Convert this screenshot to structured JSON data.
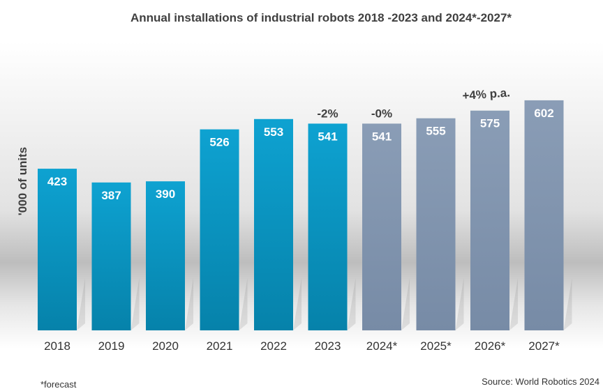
{
  "colors": {
    "actual": "#0a9bc9",
    "actual_dark": "#0680a8",
    "forecast": "#8599b2",
    "forecast_dark": "#7488a3"
  },
  "chart_data": {
    "type": "bar",
    "title": "Annual installations of industrial robots 2018  -2023 and 2024*-2027*",
    "xlabel": "",
    "ylabel": "'000 of units",
    "ylim": [
      0,
      602
    ],
    "categories": [
      "2018",
      "2019",
      "2020",
      "2021",
      "2022",
      "2023",
      "2024*",
      "2025*",
      "2026*",
      "2027*"
    ],
    "values": [
      423,
      387,
      390,
      526,
      553,
      541,
      541,
      555,
      575,
      602
    ],
    "series_type": [
      "actual",
      "actual",
      "actual",
      "actual",
      "actual",
      "actual",
      "forecast",
      "forecast",
      "forecast",
      "forecast"
    ],
    "annotations": [
      {
        "text": "-2%",
        "category": "2023"
      },
      {
        "text": "-0%",
        "category": "2024*"
      },
      {
        "text": "+4% p.a.",
        "category": "2026*"
      }
    ],
    "footnote": "*forecast",
    "source": "Source: World Robotics 2024"
  }
}
